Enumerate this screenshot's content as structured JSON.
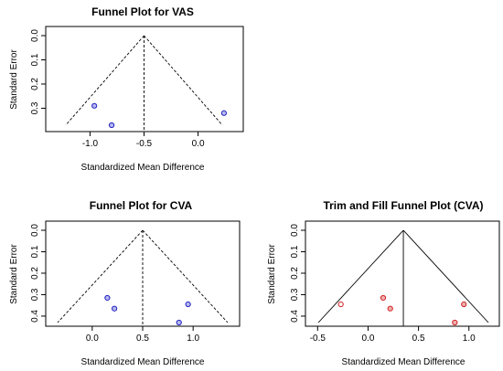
{
  "chart_data": [
    {
      "type": "scatter",
      "title": "Funnel Plot for VAS",
      "xlabel": "Standardized Mean Difference",
      "ylabel": "Standard Error",
      "xlim": [
        -1.3,
        0.3
      ],
      "ylim": [
        0.0,
        0.37
      ],
      "x_ticks": [
        "-1.0",
        "-0.5",
        "0.0"
      ],
      "x_tick_values": [
        -1.0,
        -0.5,
        0.0
      ],
      "y_ticks": [
        "0.0",
        "0.1",
        "0.2",
        "0.3"
      ],
      "y_tick_values": [
        0.0,
        0.1,
        0.2,
        0.3
      ],
      "y_reversed": true,
      "center": -0.5,
      "funnel_base_se": 0.37,
      "series": [
        {
          "color": "#2020c0",
          "fill": "#b8b8f0",
          "points": [
            {
              "x": -0.96,
              "y": 0.29
            },
            {
              "x": -0.8,
              "y": 0.37
            },
            {
              "x": 0.24,
              "y": 0.32
            }
          ]
        }
      ],
      "line_style": "dashed"
    },
    {
      "type": "scatter",
      "title": "Funnel Plot for CVA",
      "xlabel": "Standardized Mean Difference",
      "ylabel": "Standard Error",
      "xlim": [
        -0.37,
        1.37
      ],
      "ylim": [
        0.0,
        0.43
      ],
      "x_ticks": [
        "0.0",
        "0.5",
        "1.0"
      ],
      "x_tick_values": [
        0.0,
        0.5,
        1.0
      ],
      "y_ticks": [
        "0.0",
        "0.1",
        "0.2",
        "0.3",
        "0.4"
      ],
      "y_tick_values": [
        0.0,
        0.1,
        0.2,
        0.3,
        0.4
      ],
      "y_reversed": true,
      "center": 0.5,
      "funnel_base_se": 0.43,
      "series": [
        {
          "color": "#2020c0",
          "fill": "#b8b8f0",
          "points": [
            {
              "x": 0.15,
              "y": 0.315
            },
            {
              "x": 0.22,
              "y": 0.365
            },
            {
              "x": 0.95,
              "y": 0.345
            },
            {
              "x": 0.86,
              "y": 0.43
            }
          ]
        }
      ],
      "line_style": "dashed"
    },
    {
      "type": "scatter",
      "title": "Trim and Fill Funnel Plot (CVA)",
      "xlabel": "Standardized Mean Difference",
      "ylabel": "Standard Error",
      "xlim": [
        -0.53,
        1.22
      ],
      "ylim": [
        0.0,
        0.43
      ],
      "x_ticks": [
        "-0.5",
        "0.0",
        "0.5",
        "1.0"
      ],
      "x_tick_values": [
        -0.5,
        0.0,
        0.5,
        1.0
      ],
      "y_ticks": [
        "0.0",
        "0.1",
        "0.2",
        "0.3",
        "0.4"
      ],
      "y_tick_values": [
        0.0,
        0.1,
        0.2,
        0.3,
        0.4
      ],
      "y_reversed": true,
      "center": 0.35,
      "funnel_base_se": 0.43,
      "series": [
        {
          "color": "#d02020",
          "fill": "#f0b0b0",
          "points": [
            {
              "x": 0.15,
              "y": 0.315
            },
            {
              "x": 0.22,
              "y": 0.365
            },
            {
              "x": 0.95,
              "y": 0.345
            },
            {
              "x": 0.86,
              "y": 0.43
            }
          ]
        },
        {
          "color": "#d02020",
          "fill": "#ffffff",
          "points": [
            {
              "x": -0.27,
              "y": 0.345
            }
          ]
        }
      ],
      "line_style": "solid"
    }
  ]
}
